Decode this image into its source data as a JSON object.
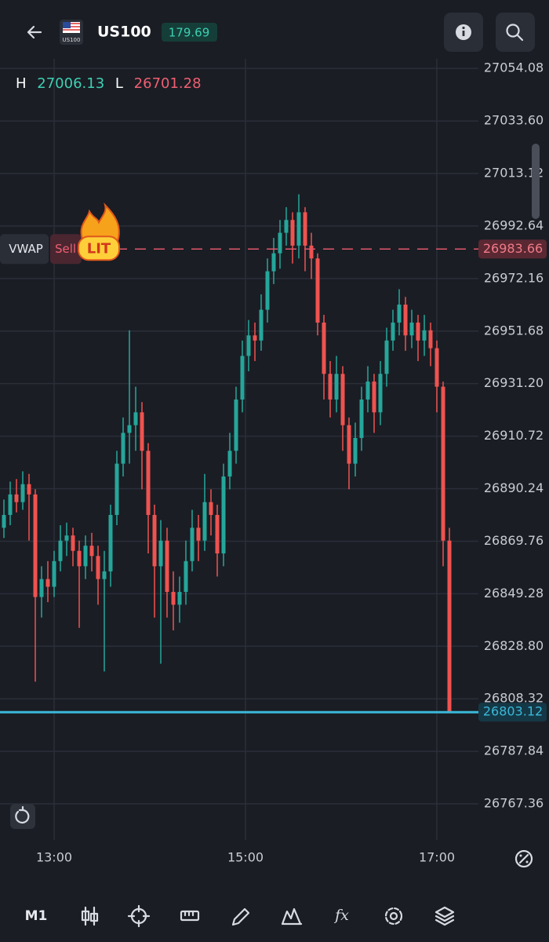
{
  "header": {
    "title": "US100",
    "flag_label": "US100",
    "change": "179.69"
  },
  "chart_data": {
    "type": "candlestick",
    "stats": {
      "high_label": "H",
      "high": 27006.13,
      "low_label": "L",
      "low": 26701.28
    },
    "up_color": "#26a69a",
    "down_color": "#ef5350",
    "open": [
      26875,
      26880,
      26888,
      26885,
      26892,
      26888,
      26848,
      26855,
      26852,
      26862,
      26870,
      26872,
      26866,
      26860,
      26868,
      26864,
      26855,
      26858,
      26880,
      26900,
      26912,
      26915,
      26920,
      26905,
      26880,
      26860,
      26870,
      26850,
      26845,
      26850,
      26862,
      26875,
      26870,
      26885,
      26880,
      26865,
      26895,
      26905,
      26925,
      26942,
      26950,
      26948,
      26960,
      26975,
      26982,
      26990,
      26995,
      26985,
      26998,
      26985,
      26980,
      26955,
      26935,
      26925,
      26935,
      26915,
      26900,
      26910,
      26925,
      26932,
      26920,
      26935,
      26948,
      26955,
      26962,
      26950,
      26955,
      26948,
      26952,
      26945,
      26930,
      26870
    ],
    "high": [
      26886,
      26893,
      26894,
      26897,
      26896,
      26890,
      26860,
      26862,
      26866,
      26876,
      26877,
      26875,
      26870,
      26872,
      26873,
      26868,
      26866,
      26884,
      26905,
      26918,
      26952,
      26930,
      26924,
      26908,
      26884,
      26878,
      26875,
      26858,
      26856,
      26870,
      26882,
      26880,
      26896,
      26890,
      26884,
      26900,
      26912,
      26930,
      26948,
      26956,
      26955,
      26966,
      26980,
      26988,
      26995,
      27000,
      26998,
      27005,
      27000,
      26990,
      26982,
      26958,
      26940,
      26942,
      26938,
      26918,
      26916,
      26930,
      26938,
      26935,
      26940,
      26953,
      26960,
      26968,
      26965,
      26960,
      26958,
      26958,
      26955,
      26948,
      26932,
      26875
    ],
    "low": [
      26871,
      26876,
      26881,
      26882,
      26870,
      26815,
      26840,
      26846,
      26848,
      26858,
      26864,
      26860,
      26836,
      26855,
      26858,
      26845,
      26819,
      26852,
      26876,
      26895,
      26900,
      26905,
      26890,
      26865,
      26840,
      26822,
      26840,
      26835,
      26838,
      26845,
      26858,
      26862,
      26866,
      26872,
      26856,
      26860,
      26890,
      26900,
      26920,
      26936,
      26940,
      26944,
      26955,
      26970,
      26976,
      26985,
      26978,
      26980,
      26975,
      26972,
      26950,
      26925,
      26918,
      26920,
      26905,
      26890,
      26895,
      26905,
      26920,
      26912,
      26915,
      26930,
      26944,
      26950,
      26944,
      26945,
      26940,
      26942,
      26938,
      26920,
      26860,
      26803
    ],
    "close": [
      26880,
      26888,
      26885,
      26892,
      26888,
      26848,
      26855,
      26852,
      26862,
      26870,
      26872,
      26866,
      26860,
      26868,
      26864,
      26855,
      26858,
      26880,
      26900,
      26912,
      26915,
      26920,
      26905,
      26880,
      26860,
      26870,
      26850,
      26845,
      26850,
      26862,
      26875,
      26870,
      26885,
      26880,
      26865,
      26895,
      26905,
      26925,
      26942,
      26950,
      26948,
      26960,
      26975,
      26982,
      26990,
      26995,
      26985,
      26998,
      26985,
      26980,
      26955,
      26935,
      26925,
      26935,
      26915,
      26900,
      26910,
      26925,
      26932,
      26920,
      26935,
      26948,
      26955,
      26962,
      26950,
      26955,
      26948,
      26952,
      26945,
      26930,
      26870,
      26803
    ],
    "xlim": [
      -0.625,
      75.625
    ],
    "xticks": [
      {
        "value": 8,
        "label": "13:00"
      },
      {
        "value": 38.5,
        "label": "15:00"
      },
      {
        "value": 69,
        "label": "17:00"
      }
    ],
    "ylim": [
      26753.3,
      27057.8
    ],
    "yticks": [
      27054.08,
      {
        "value": 27033.6,
        "label": "27033.60"
      },
      27013.12,
      26992.64,
      26972.16,
      26951.68,
      {
        "value": 26931.2,
        "label": "26931.20"
      },
      26910.72,
      26890.24,
      26869.76,
      26849.28,
      {
        "value": 26828.8,
        "label": "26828.80"
      },
      26808.32,
      26787.84,
      26767.36
    ],
    "grid": true,
    "price_line": {
      "value": 26803.12,
      "color": "#3bb8d8"
    },
    "vwap": {
      "name": "VWAP",
      "action": "Sell",
      "sticker": "LIT",
      "value": 26983.66,
      "color": "#e0566a"
    }
  },
  "toolbar": {
    "timeframe": "M1"
  }
}
